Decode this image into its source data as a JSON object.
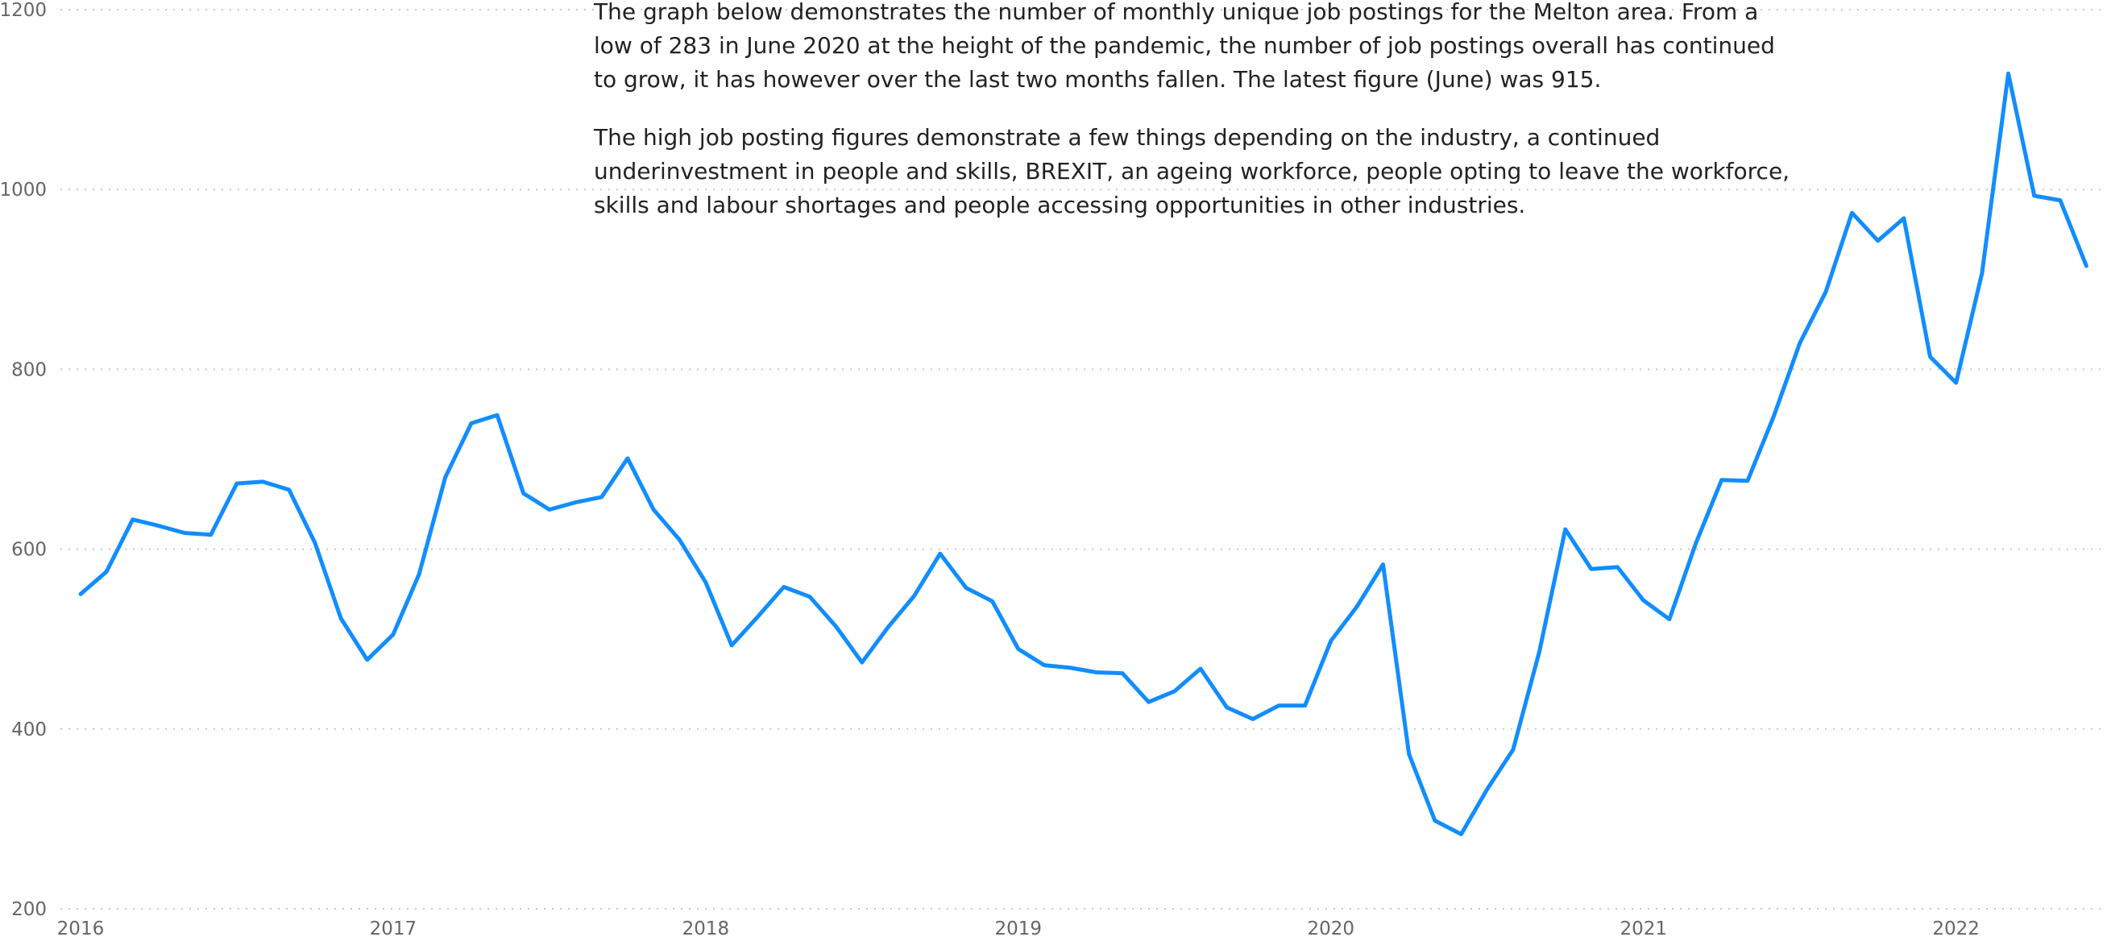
{
  "chart_data": {
    "type": "line",
    "annotations": [
      "The graph below demonstrates the number of monthly unique job postings for the Melton area.  From a low of 283 in June 2020 at the height of the pandemic, the number of job postings overall has continued to grow, it has however over the last two months fallen.  The latest figure (June) was 915.",
      "The high job posting figures demonstrate a few things depending on the industry, a continued underinvestment in people and skills, BREXIT, an ageing workforce, people opting to leave the workforce, skills and labour shortages and people accessing opportunities in other industries."
    ],
    "x": [
      2016,
      2016.083,
      2016.167,
      2016.25,
      2016.333,
      2016.417,
      2016.5,
      2016.583,
      2016.667,
      2016.75,
      2016.833,
      2016.917,
      2017,
      2017.083,
      2017.167,
      2017.25,
      2017.333,
      2017.417,
      2017.5,
      2017.583,
      2017.667,
      2017.75,
      2017.833,
      2017.917,
      2018,
      2018.083,
      2018.167,
      2018.25,
      2018.333,
      2018.417,
      2018.5,
      2018.583,
      2018.667,
      2018.75,
      2018.833,
      2018.917,
      2019,
      2019.083,
      2019.167,
      2019.25,
      2019.333,
      2019.417,
      2019.5,
      2019.583,
      2019.667,
      2019.75,
      2019.833,
      2019.917,
      2020,
      2020.083,
      2020.167,
      2020.25,
      2020.333,
      2020.417,
      2020.5,
      2020.583,
      2020.667,
      2020.75,
      2020.833,
      2020.917,
      2021,
      2021.083,
      2021.167,
      2021.25,
      2021.333,
      2021.417,
      2021.5,
      2021.583,
      2021.667,
      2021.75,
      2021.833,
      2021.917,
      2022,
      2022.083,
      2022.167,
      2022.25,
      2022.333,
      2022.417
    ],
    "series": [
      {
        "color": "#118dff",
        "values": [
          550,
          575,
          633,
          626,
          618,
          616,
          673,
          675,
          666,
          607,
          523,
          477,
          505,
          572,
          680,
          740,
          749,
          662,
          644,
          652,
          658,
          701,
          644,
          610,
          563,
          493,
          525,
          558,
          547,
          514,
          474,
          513,
          548,
          595,
          557,
          542,
          489,
          471,
          468,
          463,
          462,
          430,
          442,
          467,
          424,
          411,
          426,
          426,
          498,
          536,
          583,
          372,
          298,
          283,
          333,
          377,
          486,
          622,
          578,
          580,
          543,
          522,
          606,
          677,
          676,
          748,
          829,
          886,
          974,
          943,
          968,
          814,
          785,
          907,
          1129,
          993,
          988,
          915
        ]
      }
    ],
    "xlim": [
      2015.93,
      2022.47
    ],
    "xticks": [
      2016,
      2017,
      2018,
      2019,
      2020,
      2021,
      2022
    ],
    "ylim": [
      200,
      1200
    ],
    "yticks": [
      200,
      400,
      600,
      800,
      1000,
      1200
    ],
    "grid": true
  }
}
